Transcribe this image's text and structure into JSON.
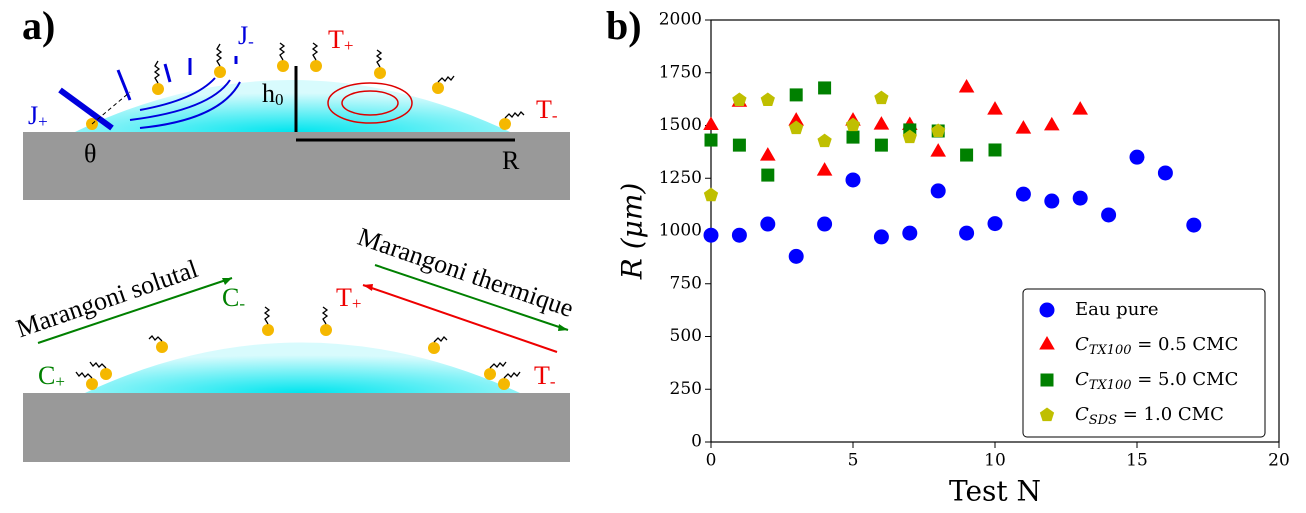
{
  "panel_a": {
    "label": "a)",
    "top": {
      "j_minus": {
        "main": "J",
        "sub": "-"
      },
      "j_plus": {
        "main": "J",
        "sub": "+"
      },
      "t_plus": {
        "main": "T",
        "sub": "+"
      },
      "t_minus": {
        "main": "T",
        "sub": "-"
      },
      "h0": {
        "main": "h",
        "sub": "0"
      },
      "radius": "R",
      "theta": "θ"
    },
    "bottom": {
      "solutal": "Marangoni solutal",
      "thermique": "Marangoni thermique",
      "c_minus": {
        "main": "C",
        "sub": "-"
      },
      "c_plus": {
        "main": "C",
        "sub": "+"
      },
      "t_plus": {
        "main": "T",
        "sub": "+"
      },
      "t_minus": {
        "main": "T",
        "sub": "-"
      }
    }
  },
  "chart_data": {
    "type": "scatter",
    "panel_label": "b)",
    "x_label": "Test N",
    "y_label": "R (μm)",
    "xlim": [
      0,
      20
    ],
    "xticks": [
      0,
      5,
      10,
      15,
      20
    ],
    "ylim": [
      0,
      2000
    ],
    "yticks": [
      0,
      250,
      500,
      750,
      1000,
      1250,
      1500,
      1750,
      2000
    ],
    "legend_position": "lower right",
    "series": [
      {
        "name": "Eau pure",
        "color": "#0000ff",
        "marker": "circle",
        "x": [
          0,
          1,
          2,
          3,
          4,
          5,
          6,
          7,
          8,
          9,
          10,
          11,
          12,
          13,
          14,
          15,
          16,
          17
        ],
        "values": [
          980,
          980,
          1033,
          880,
          1033,
          1242,
          972,
          990,
          1190,
          990,
          1035,
          1175,
          1142,
          1156,
          1076,
          1350,
          1275,
          1028
        ]
      },
      {
        "name": "CTX100 = 0.5 CMC",
        "color": "#ff0000",
        "marker": "triangle",
        "x": [
          0,
          1,
          2,
          3,
          4,
          5,
          6,
          7,
          8,
          9,
          10,
          11,
          12,
          13
        ],
        "values": [
          1500,
          1610,
          1355,
          1521,
          1284,
          1521,
          1502,
          1500,
          1374,
          1678,
          1573,
          1483,
          1498,
          1573
        ]
      },
      {
        "name": "CTX100 = 5.0 CMC",
        "color": "#008000",
        "marker": "square",
        "x": [
          0,
          1,
          2,
          3,
          4,
          5,
          6,
          7,
          8,
          9,
          10
        ],
        "values": [
          1431,
          1407,
          1265,
          1645,
          1678,
          1445,
          1407,
          1479,
          1474,
          1360,
          1384
        ]
      },
      {
        "name": "CSDS = 1.0 CMC",
        "color": "#bfbf00",
        "marker": "pentagon",
        "x": [
          0,
          1,
          2,
          3,
          4,
          5,
          6,
          7,
          8
        ],
        "values": [
          1170,
          1621,
          1621,
          1488,
          1426,
          1502,
          1630,
          1445,
          1474
        ]
      }
    ]
  }
}
